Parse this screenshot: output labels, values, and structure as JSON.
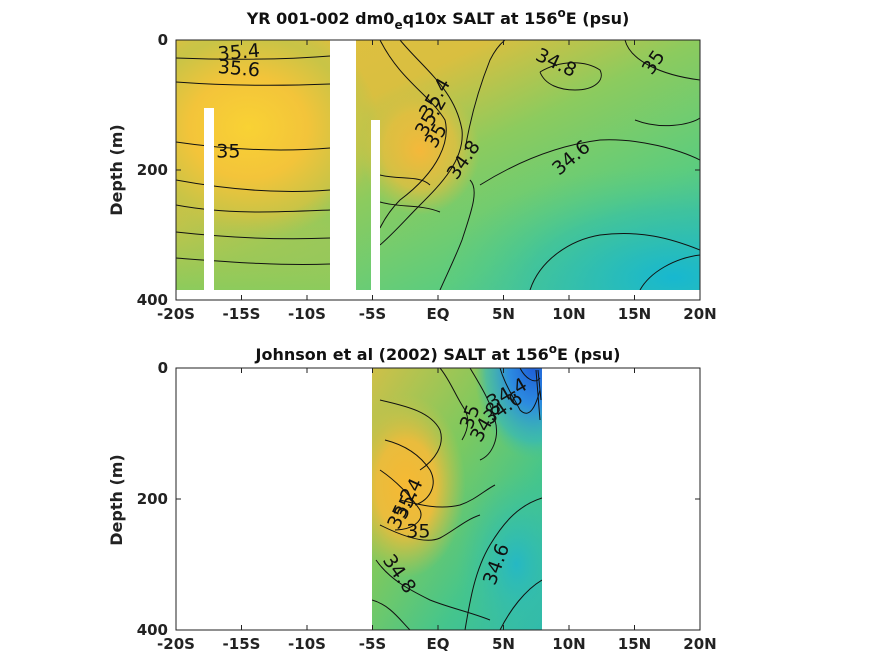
{
  "chart_data": [
    {
      "type": "heatmap",
      "title_main": "YR 001-002 dm0",
      "title_sub": "e",
      "title_rest": "q10x SALT at 156",
      "title_sup": "o",
      "title_tail": "E (psu)",
      "ylabel": "Depth (m)",
      "x_ticks": [
        "-20S",
        "-15S",
        "-10S",
        "-5S",
        "EQ",
        "5N",
        "10N",
        "15N",
        "20N"
      ],
      "x_values": [
        -20,
        -15,
        -10,
        -5,
        0,
        5,
        10,
        15,
        20
      ],
      "xlim": [
        -20,
        20
      ],
      "y_ticks": [
        "0",
        "200",
        "400"
      ],
      "y_values": [
        0,
        200,
        400
      ],
      "ylim": [
        0,
        400
      ],
      "y_reversed": true,
      "contour_labels": [
        {
          "text": "35.4",
          "lat": -15.2,
          "depth": 20,
          "angle": -5
        },
        {
          "text": "35.6",
          "lat": -15.2,
          "depth": 45,
          "angle": 5
        },
        {
          "text": "35",
          "lat": -16.0,
          "depth": 172,
          "angle": 0
        },
        {
          "text": "35.4",
          "lat": -0.2,
          "depth": 90,
          "angle": -60
        },
        {
          "text": "35.2",
          "lat": -0.5,
          "depth": 118,
          "angle": -60
        },
        {
          "text": "35",
          "lat": -0.1,
          "depth": 148,
          "angle": -60
        },
        {
          "text": "34.8",
          "lat": 2.0,
          "depth": 185,
          "angle": -55
        },
        {
          "text": "34.8",
          "lat": 9.0,
          "depth": 36,
          "angle": 25
        },
        {
          "text": "35",
          "lat": 16.5,
          "depth": 35,
          "angle": -55
        },
        {
          "text": "34.6",
          "lat": 10.2,
          "depth": 182,
          "angle": -40
        }
      ]
    },
    {
      "type": "heatmap",
      "title_main": "Johnson et al (2002) SALT at 156",
      "title_sup": "o",
      "title_tail": "E (psu)",
      "ylabel": "Depth (m)",
      "x_ticks": [
        "-20S",
        "-15S",
        "-10S",
        "-5S",
        "EQ",
        "5N",
        "10N",
        "15N",
        "20N"
      ],
      "x_values": [
        -20,
        -15,
        -10,
        -5,
        0,
        5,
        10,
        15,
        20
      ],
      "xlim": [
        -20,
        20
      ],
      "y_ticks": [
        "0",
        "200",
        "400"
      ],
      "y_values": [
        0,
        200,
        400
      ],
      "ylim": [
        0,
        400
      ],
      "y_reversed": true,
      "data_extent_lat": [
        -5,
        8
      ],
      "contour_labels": [
        {
          "text": "34.4",
          "lat": 5.3,
          "depth": 40,
          "angle": -30
        },
        {
          "text": "34.6",
          "lat": 5.0,
          "depth": 62,
          "angle": -35
        },
        {
          "text": "34.8",
          "lat": 3.7,
          "depth": 83,
          "angle": -60
        },
        {
          "text": "35",
          "lat": 2.5,
          "depth": 75,
          "angle": -70
        },
        {
          "text": "35.4",
          "lat": -2.2,
          "depth": 200,
          "angle": -65
        },
        {
          "text": "35.2",
          "lat": -2.7,
          "depth": 215,
          "angle": -65
        },
        {
          "text": "35",
          "lat": -1.5,
          "depth": 250,
          "angle": 0
        },
        {
          "text": "34.8",
          "lat": -3.0,
          "depth": 315,
          "angle": 55
        },
        {
          "text": "34.6",
          "lat": 4.5,
          "depth": 300,
          "angle": -70
        }
      ]
    }
  ]
}
